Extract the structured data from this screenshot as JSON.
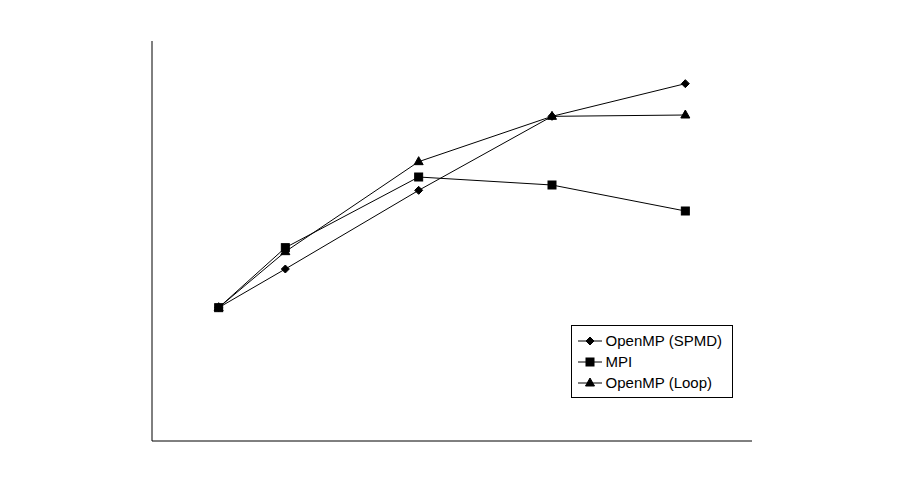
{
  "chart_data": {
    "type": "line",
    "x": [
      1,
      2,
      4,
      6,
      8
    ],
    "xlim": [
      0,
      9
    ],
    "xticks": [
      0,
      1,
      2,
      3,
      4,
      5,
      6,
      7,
      8,
      9
    ],
    "ylim": [
      0,
      6
    ],
    "yticks": [
      0,
      1,
      2,
      3,
      4,
      5,
      6
    ],
    "tick_labels": false,
    "grid": false,
    "legend": "lower right",
    "series": [
      {
        "name": "OpenMP (SPMD)",
        "color": "#000000",
        "marker": "diamond",
        "values": [
          2.0,
          2.58,
          3.76,
          4.87,
          5.36
        ]
      },
      {
        "name": "MPI",
        "color": "#000000",
        "marker": "square",
        "values": [
          2.0,
          2.9,
          3.96,
          3.84,
          3.45
        ]
      },
      {
        "name": "OpenMP (Loop)",
        "color": "#000000",
        "marker": "triangle",
        "values": [
          2.0,
          2.84,
          4.19,
          4.87,
          4.89
        ]
      }
    ]
  }
}
